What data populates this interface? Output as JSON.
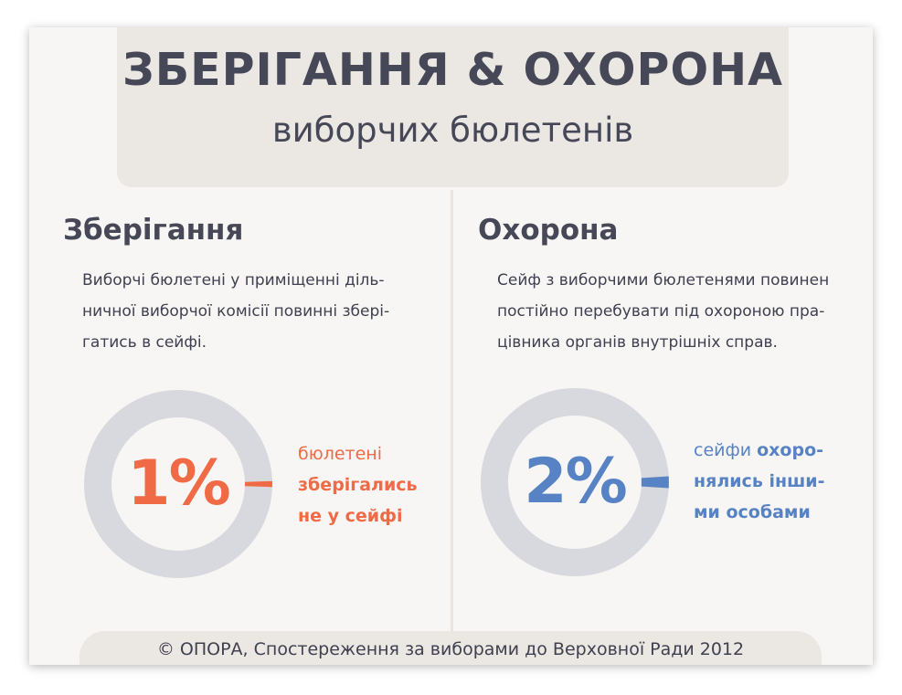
{
  "header": {
    "title": "ЗБЕРІГАННЯ & ОХОРОНА",
    "subtitle": "виборчих бюлетенів"
  },
  "storage": {
    "heading": "Зберігання",
    "text": "Виборчі бюлетені у приміщенні дільничної виборчої комісії повинні зберігатись в сейфі.",
    "text_lines": [
      "Виборчі бюлетені у приміщенні діль-",
      "ничної виборчої комісії повинні збері-",
      "гатись в сейфі."
    ],
    "percent_label": "1%",
    "note_lines": [
      "бюлетені",
      "зберігались",
      "не у сейфі"
    ],
    "color": "#ef6a45"
  },
  "guard": {
    "heading": "Охорона",
    "text": "Сейф з виборчими бюлетенями повинен постійно перебувати під охороною працівника органів внутрішніх справ.",
    "text_lines": [
      "Сейф з виборчими бюлетенями повинен",
      "постійно перебувати під охороною пра-",
      "цівника органів внутрішніх справ."
    ],
    "percent_label": "2%",
    "note_line1_normal": "сейфи ",
    "note_line1_bold": "охоро-",
    "note_line2": "нялись інши-",
    "note_line3": "ми особами",
    "color": "#5782c3"
  },
  "ring_color": "#d8d9de",
  "footer": {
    "text": "© ОПОРА, Спостереження за виборами до Верховної Ради 2012"
  },
  "chart_data": [
    {
      "type": "pie",
      "title": "Зберігання",
      "categories": [
        "бюлетені зберігались не у сейфі",
        ""
      ],
      "values": [
        1,
        99
      ],
      "colors": [
        "#ef6a45",
        "#d8d9de"
      ]
    },
    {
      "type": "pie",
      "title": "Охорона",
      "categories": [
        "сейфи охоронялись іншими особами",
        ""
      ],
      "values": [
        2,
        98
      ],
      "colors": [
        "#5782c3",
        "#d8d9de"
      ]
    }
  ]
}
